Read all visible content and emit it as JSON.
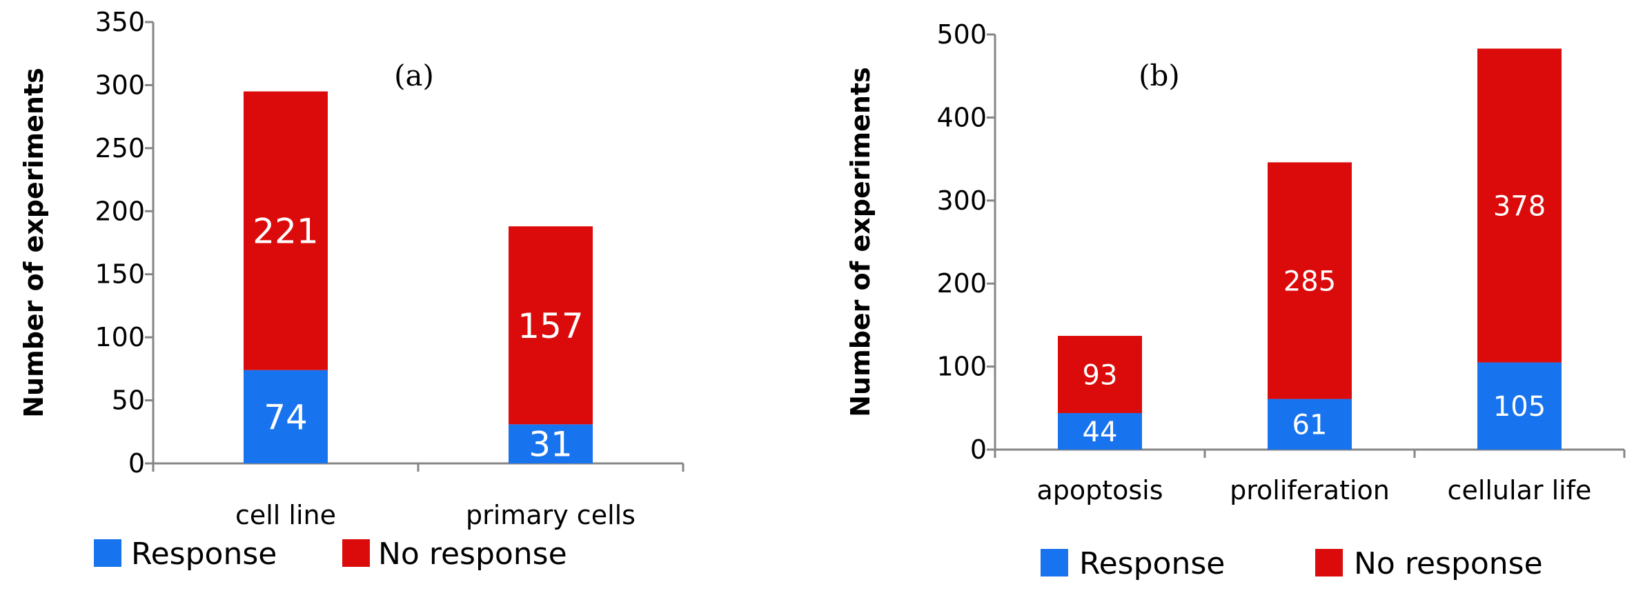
{
  "chart_data": [
    {
      "type": "bar",
      "stacked": true,
      "panel_label": "(a)",
      "ylabel": "Number of experiments",
      "categories": [
        "cell line",
        "primary cells"
      ],
      "ylim": [
        0,
        350
      ],
      "yticks": [
        0,
        50,
        100,
        150,
        200,
        250,
        300,
        350
      ],
      "series": [
        {
          "name": "Response",
          "color": "#1873ee",
          "values": [
            74,
            31
          ]
        },
        {
          "name": "No response",
          "color": "#dc0b0b",
          "values": [
            221,
            157
          ]
        }
      ],
      "legend_position": "bottom-left"
    },
    {
      "type": "bar",
      "stacked": true,
      "panel_label": "(b)",
      "ylabel": "Number of experiments",
      "categories": [
        "apoptosis",
        "proliferation",
        "cellular life"
      ],
      "ylim": [
        0,
        500
      ],
      "yticks": [
        0,
        100,
        200,
        300,
        400,
        500
      ],
      "series": [
        {
          "name": "Response",
          "color": "#1873ee",
          "values": [
            44,
            61,
            105
          ]
        },
        {
          "name": "No response",
          "color": "#dc0b0b",
          "values": [
            93,
            285,
            378
          ]
        }
      ],
      "legend_position": "bottom-center"
    }
  ]
}
